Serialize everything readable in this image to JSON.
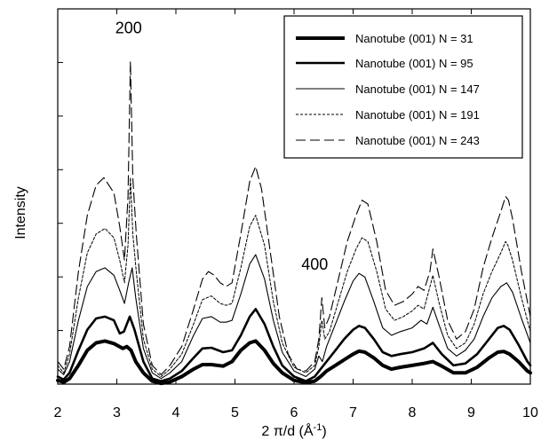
{
  "chart_data": {
    "type": "line",
    "title": "",
    "xlabel": "2 π/d (Å",
    "xlabel_sup": "-1",
    "xlabel_close": ")",
    "ylabel": "Intensity",
    "xlim": [
      2,
      10
    ],
    "ylim": [
      0,
      1
    ],
    "x_ticks": [
      2,
      3,
      4,
      5,
      6,
      7,
      8,
      9,
      10
    ],
    "x_tick_labels": [
      "2",
      "3",
      "4",
      "5",
      "6",
      "7",
      "8",
      "9",
      "10"
    ],
    "y_tick_labels": [],
    "grid": false,
    "legend_position": "top-right",
    "annotations": [
      {
        "text": "200",
        "x": 3.2,
        "y": 0.935
      },
      {
        "text": "400",
        "x": 6.35,
        "y": 0.305
      }
    ],
    "series": [
      {
        "name": "Nanotube (001) N = 31",
        "style": "thick-solid",
        "x": [
          2.0,
          2.1,
          2.2,
          2.35,
          2.5,
          2.65,
          2.8,
          2.95,
          3.1,
          3.17,
          3.24,
          3.32,
          3.45,
          3.6,
          3.75,
          3.9,
          4.1,
          4.3,
          4.45,
          4.6,
          4.8,
          4.95,
          5.1,
          5.25,
          5.35,
          5.5,
          5.65,
          5.8,
          6.0,
          6.2,
          6.35,
          6.45,
          6.55,
          6.7,
          6.85,
          7.0,
          7.1,
          7.2,
          7.35,
          7.5,
          7.65,
          7.8,
          8.0,
          8.2,
          8.35,
          8.5,
          8.7,
          8.9,
          9.1,
          9.3,
          9.45,
          9.55,
          9.65,
          9.8,
          9.95,
          10.0
        ],
        "y": [
          0.01,
          0.005,
          0.015,
          0.05,
          0.09,
          0.11,
          0.115,
          0.108,
          0.095,
          0.1,
          0.09,
          0.06,
          0.03,
          0.008,
          0.002,
          0.006,
          0.02,
          0.04,
          0.052,
          0.052,
          0.048,
          0.06,
          0.09,
          0.11,
          0.115,
          0.09,
          0.055,
          0.03,
          0.01,
          0.004,
          0.008,
          0.02,
          0.035,
          0.05,
          0.065,
          0.08,
          0.088,
          0.085,
          0.07,
          0.05,
          0.04,
          0.045,
          0.05,
          0.055,
          0.06,
          0.048,
          0.03,
          0.03,
          0.045,
          0.07,
          0.085,
          0.087,
          0.08,
          0.06,
          0.035,
          0.03
        ]
      },
      {
        "name": "Nanotube (001) N = 95",
        "style": "medium-solid",
        "x": [
          2.0,
          2.1,
          2.2,
          2.35,
          2.5,
          2.65,
          2.8,
          2.95,
          3.05,
          3.12,
          3.22,
          3.3,
          3.45,
          3.6,
          3.75,
          3.9,
          4.1,
          4.3,
          4.45,
          4.6,
          4.8,
          4.95,
          5.1,
          5.25,
          5.35,
          5.5,
          5.65,
          5.8,
          6.0,
          6.2,
          6.35,
          6.45,
          6.55,
          6.7,
          6.85,
          7.0,
          7.1,
          7.2,
          7.35,
          7.5,
          7.65,
          7.8,
          8.0,
          8.2,
          8.35,
          8.5,
          8.7,
          8.9,
          9.1,
          9.3,
          9.45,
          9.55,
          9.65,
          9.8,
          9.95,
          10.0
        ],
        "y": [
          0.02,
          0.012,
          0.03,
          0.09,
          0.145,
          0.175,
          0.18,
          0.17,
          0.135,
          0.14,
          0.18,
          0.145,
          0.06,
          0.015,
          0.008,
          0.015,
          0.035,
          0.07,
          0.095,
          0.097,
          0.085,
          0.09,
          0.13,
          0.18,
          0.2,
          0.16,
          0.1,
          0.05,
          0.02,
          0.008,
          0.02,
          0.04,
          0.06,
          0.09,
          0.12,
          0.145,
          0.155,
          0.15,
          0.12,
          0.085,
          0.075,
          0.08,
          0.085,
          0.095,
          0.11,
          0.08,
          0.05,
          0.055,
          0.08,
          0.12,
          0.15,
          0.155,
          0.145,
          0.105,
          0.06,
          0.05
        ]
      },
      {
        "name": "Nanotube (001) N = 147",
        "style": "thin-solid",
        "x": [
          2.0,
          2.1,
          2.2,
          2.35,
          2.5,
          2.65,
          2.8,
          2.95,
          3.05,
          3.13,
          3.2,
          3.26,
          3.32,
          3.45,
          3.6,
          3.75,
          3.9,
          4.1,
          4.3,
          4.45,
          4.6,
          4.75,
          4.85,
          4.95,
          5.1,
          5.25,
          5.35,
          5.5,
          5.65,
          5.8,
          6.0,
          6.2,
          6.35,
          6.42,
          6.48,
          6.55,
          6.7,
          6.85,
          7.0,
          7.1,
          7.2,
          7.35,
          7.5,
          7.65,
          7.8,
          8.0,
          8.15,
          8.25,
          8.35,
          8.45,
          8.6,
          8.75,
          8.9,
          9.05,
          9.2,
          9.35,
          9.5,
          9.6,
          9.7,
          9.85,
          10.0
        ],
        "y": [
          0.04,
          0.025,
          0.06,
          0.17,
          0.26,
          0.3,
          0.31,
          0.29,
          0.25,
          0.215,
          0.27,
          0.31,
          0.23,
          0.095,
          0.03,
          0.015,
          0.03,
          0.06,
          0.13,
          0.175,
          0.18,
          0.165,
          0.165,
          0.17,
          0.24,
          0.32,
          0.345,
          0.28,
          0.17,
          0.085,
          0.035,
          0.02,
          0.04,
          0.075,
          0.06,
          0.1,
          0.16,
          0.22,
          0.275,
          0.295,
          0.285,
          0.22,
          0.15,
          0.13,
          0.14,
          0.15,
          0.17,
          0.16,
          0.205,
          0.16,
          0.095,
          0.075,
          0.09,
          0.12,
          0.18,
          0.23,
          0.26,
          0.27,
          0.245,
          0.175,
          0.11
        ]
      },
      {
        "name": "Nanotube (001) N = 191",
        "style": "dotted",
        "x": [
          2.0,
          2.1,
          2.2,
          2.35,
          2.5,
          2.65,
          2.8,
          2.95,
          3.05,
          3.13,
          3.19,
          3.23,
          3.27,
          3.33,
          3.45,
          3.6,
          3.75,
          3.9,
          4.1,
          4.3,
          4.45,
          4.6,
          4.75,
          4.85,
          4.95,
          5.1,
          5.25,
          5.35,
          5.5,
          5.65,
          5.8,
          6.0,
          6.2,
          6.35,
          6.42,
          6.47,
          6.52,
          6.6,
          6.75,
          6.9,
          7.05,
          7.15,
          7.25,
          7.4,
          7.55,
          7.7,
          7.85,
          8.0,
          8.1,
          8.2,
          8.3,
          8.35,
          8.45,
          8.6,
          8.75,
          8.9,
          9.05,
          9.2,
          9.35,
          9.5,
          9.58,
          9.62,
          9.7,
          9.85,
          10.0
        ],
        "y": [
          0.05,
          0.03,
          0.08,
          0.23,
          0.35,
          0.4,
          0.415,
          0.39,
          0.33,
          0.27,
          0.37,
          0.55,
          0.4,
          0.3,
          0.12,
          0.04,
          0.02,
          0.04,
          0.08,
          0.16,
          0.225,
          0.235,
          0.215,
          0.21,
          0.215,
          0.31,
          0.42,
          0.45,
          0.37,
          0.22,
          0.11,
          0.045,
          0.03,
          0.05,
          0.1,
          0.17,
          0.12,
          0.14,
          0.22,
          0.3,
          0.36,
          0.39,
          0.38,
          0.3,
          0.2,
          0.17,
          0.18,
          0.195,
          0.21,
          0.2,
          0.26,
          0.29,
          0.22,
          0.13,
          0.095,
          0.11,
          0.16,
          0.24,
          0.3,
          0.35,
          0.38,
          0.37,
          0.33,
          0.23,
          0.14
        ]
      },
      {
        "name": "Nanotube (001) N = 243",
        "style": "long-dash",
        "x": [
          2.0,
          2.1,
          2.2,
          2.35,
          2.5,
          2.65,
          2.78,
          2.95,
          3.05,
          3.13,
          3.19,
          3.23,
          3.27,
          3.33,
          3.45,
          3.6,
          3.75,
          3.9,
          4.1,
          4.3,
          4.45,
          4.55,
          4.65,
          4.75,
          4.85,
          4.95,
          5.1,
          5.25,
          5.35,
          5.45,
          5.6,
          5.75,
          5.9,
          6.05,
          6.2,
          6.35,
          6.42,
          6.47,
          6.52,
          6.6,
          6.75,
          6.9,
          7.05,
          7.15,
          7.25,
          7.4,
          7.55,
          7.7,
          7.85,
          8.0,
          8.1,
          8.2,
          8.3,
          8.35,
          8.45,
          8.6,
          8.75,
          8.9,
          9.05,
          9.2,
          9.35,
          9.5,
          9.58,
          9.63,
          9.7,
          9.85,
          10.0
        ],
        "y": [
          0.06,
          0.04,
          0.1,
          0.3,
          0.45,
          0.53,
          0.55,
          0.51,
          0.42,
          0.33,
          0.5,
          0.86,
          0.55,
          0.4,
          0.16,
          0.05,
          0.025,
          0.05,
          0.1,
          0.2,
          0.28,
          0.3,
          0.29,
          0.27,
          0.26,
          0.27,
          0.4,
          0.54,
          0.58,
          0.52,
          0.35,
          0.18,
          0.08,
          0.04,
          0.035,
          0.06,
          0.12,
          0.23,
          0.15,
          0.18,
          0.28,
          0.38,
          0.45,
          0.49,
          0.48,
          0.38,
          0.25,
          0.21,
          0.22,
          0.24,
          0.26,
          0.25,
          0.3,
          0.36,
          0.29,
          0.17,
          0.12,
          0.14,
          0.2,
          0.31,
          0.39,
          0.46,
          0.5,
          0.49,
          0.44,
          0.3,
          0.18
        ]
      }
    ]
  }
}
